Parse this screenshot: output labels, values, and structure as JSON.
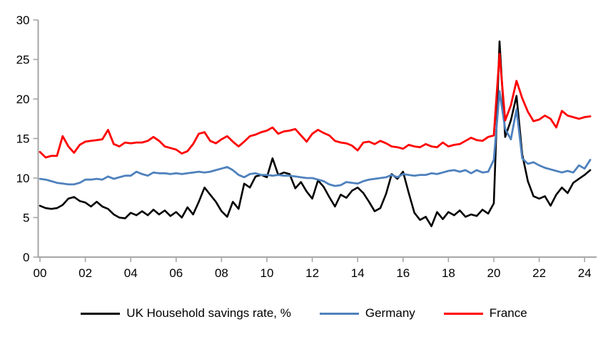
{
  "chart_data": {
    "type": "line",
    "title": "",
    "xlabel": "",
    "ylabel": "",
    "x_start_year": 2000,
    "x_step_years": 0.25,
    "xlim": [
      2000,
      2024.6
    ],
    "ylim": [
      0,
      30
    ],
    "yticks": [
      0,
      5,
      10,
      15,
      20,
      25,
      30
    ],
    "xtick_years": [
      2000,
      2002,
      2004,
      2006,
      2008,
      2010,
      2012,
      2014,
      2016,
      2018,
      2020,
      2022,
      2024
    ],
    "xtick_labels": [
      "00",
      "02",
      "04",
      "06",
      "08",
      "10",
      "12",
      "14",
      "16",
      "18",
      "20",
      "22",
      "24"
    ],
    "grid": false,
    "axis_color": "#a6a6a6",
    "text_color": "#000000",
    "legend_position": "bottom",
    "series": [
      {
        "name": "UK Household savings rate, %",
        "color": "#000000",
        "values": [
          6.5,
          6.2,
          6.1,
          6.2,
          6.6,
          7.4,
          7.6,
          7.1,
          6.9,
          6.4,
          7.0,
          6.4,
          6.1,
          5.4,
          5.0,
          4.9,
          5.6,
          5.3,
          5.8,
          5.3,
          6.0,
          5.4,
          5.9,
          5.2,
          5.7,
          5.0,
          6.3,
          5.4,
          7.0,
          8.8,
          7.9,
          7.0,
          5.8,
          5.1,
          7.0,
          6.1,
          9.3,
          8.8,
          10.2,
          10.4,
          10.1,
          12.5,
          10.4,
          10.7,
          10.5,
          8.7,
          9.5,
          8.3,
          7.4,
          9.7,
          8.9,
          7.6,
          6.4,
          7.9,
          7.5,
          8.4,
          8.8,
          8.1,
          7.0,
          5.8,
          6.2,
          8.0,
          10.5,
          9.9,
          10.8,
          8.1,
          5.6,
          4.7,
          5.1,
          3.9,
          5.7,
          4.8,
          5.7,
          5.3,
          5.9,
          5.1,
          5.4,
          5.2,
          6.0,
          5.5,
          6.8,
          27.3,
          15.2,
          17.3,
          20.4,
          13.0,
          9.6,
          7.7,
          7.4,
          7.7,
          6.5,
          7.9,
          8.8,
          8.1,
          9.4,
          9.9,
          10.4,
          11.0
        ]
      },
      {
        "name": "Germany",
        "color": "#4e81bd",
        "values": [
          9.9,
          9.8,
          9.6,
          9.4,
          9.3,
          9.2,
          9.2,
          9.4,
          9.8,
          9.8,
          9.9,
          9.8,
          10.2,
          9.9,
          10.1,
          10.3,
          10.3,
          10.8,
          10.5,
          10.3,
          10.7,
          10.6,
          10.6,
          10.5,
          10.6,
          10.5,
          10.6,
          10.7,
          10.8,
          10.7,
          10.8,
          11.0,
          11.2,
          11.4,
          11.0,
          10.4,
          10.1,
          10.5,
          10.6,
          10.4,
          10.4,
          10.3,
          10.4,
          10.3,
          10.3,
          10.2,
          10.1,
          10.0,
          10.0,
          9.8,
          9.6,
          9.2,
          9.0,
          9.1,
          9.5,
          9.4,
          9.3,
          9.6,
          9.8,
          9.9,
          10.0,
          10.1,
          10.4,
          10.1,
          10.5,
          10.4,
          10.3,
          10.4,
          10.4,
          10.6,
          10.5,
          10.7,
          10.9,
          11.0,
          10.8,
          11.0,
          10.6,
          11.0,
          10.7,
          10.8,
          12.3,
          21.0,
          16.2,
          14.9,
          18.7,
          12.5,
          11.8,
          12.0,
          11.6,
          11.3,
          11.1,
          10.9,
          10.7,
          10.9,
          10.7,
          11.6,
          11.2,
          12.3
        ]
      },
      {
        "name": "France",
        "color": "#ff0000",
        "values": [
          13.3,
          12.6,
          12.8,
          12.8,
          15.3,
          14.0,
          13.2,
          14.2,
          14.6,
          14.7,
          14.8,
          14.9,
          16.1,
          14.3,
          14.0,
          14.5,
          14.4,
          14.5,
          14.5,
          14.7,
          15.2,
          14.7,
          14.0,
          13.8,
          13.6,
          13.1,
          13.4,
          14.3,
          15.6,
          15.8,
          14.7,
          14.4,
          14.9,
          15.3,
          14.6,
          14.0,
          14.6,
          15.3,
          15.5,
          15.8,
          16.0,
          16.4,
          15.6,
          15.9,
          16.0,
          16.2,
          15.4,
          14.6,
          15.6,
          16.1,
          15.7,
          15.4,
          14.7,
          14.5,
          14.4,
          14.1,
          13.5,
          14.5,
          14.6,
          14.3,
          14.7,
          14.4,
          14.0,
          13.9,
          13.7,
          14.2,
          14.0,
          13.9,
          14.3,
          14.0,
          13.9,
          14.5,
          14.0,
          14.2,
          14.3,
          14.7,
          15.1,
          14.8,
          14.7,
          15.2,
          15.4,
          25.7,
          17.3,
          19.2,
          22.3,
          20.1,
          18.4,
          17.2,
          17.4,
          17.9,
          17.5,
          16.4,
          18.5,
          17.9,
          17.7,
          17.5,
          17.7,
          17.8
        ]
      }
    ]
  },
  "legend": {
    "uk_label": "UK Household savings rate, %",
    "germany_label": "Germany",
    "france_label": "France"
  }
}
